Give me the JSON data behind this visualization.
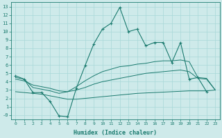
{
  "xlabel": "Humidex (Indice chaleur)",
  "bg_color": "#ceeaea",
  "line_color": "#1a7a6e",
  "grid_color": "#a8d8d8",
  "xlim": [
    -0.5,
    23.5
  ],
  "ylim": [
    -0.5,
    13.5
  ],
  "xticks": [
    0,
    1,
    2,
    3,
    4,
    5,
    6,
    7,
    8,
    9,
    10,
    11,
    12,
    13,
    14,
    15,
    16,
    17,
    18,
    19,
    20,
    21,
    22,
    23
  ],
  "yticks": [
    0,
    1,
    2,
    3,
    4,
    5,
    6,
    7,
    8,
    9,
    10,
    11,
    12,
    13
  ],
  "ytick_labels": [
    "-0",
    "1",
    "2",
    "3",
    "4",
    "5",
    "6",
    "7",
    "8",
    "9",
    "10",
    "11",
    "12",
    "13"
  ],
  "main_x": [
    0,
    1,
    2,
    3,
    4,
    5,
    6,
    7,
    8,
    9,
    10,
    11,
    12,
    13,
    14,
    15,
    16,
    17,
    18,
    19,
    20,
    21,
    22
  ],
  "main_y": [
    4.7,
    4.3,
    2.7,
    2.7,
    1.6,
    -0.1,
    -0.2,
    3.2,
    5.9,
    8.5,
    10.3,
    11.0,
    12.9,
    10.0,
    10.3,
    8.3,
    8.7,
    8.7,
    6.3,
    8.7,
    4.3,
    4.5,
    2.8
  ],
  "line1_x": [
    0,
    1,
    2,
    3,
    4,
    5,
    6,
    7,
    8,
    9,
    10,
    11,
    12,
    13,
    14,
    15,
    16,
    17,
    18,
    19,
    20,
    21,
    22,
    23
  ],
  "line1_y": [
    4.5,
    4.3,
    3.3,
    3.1,
    2.9,
    2.6,
    2.8,
    3.4,
    4.1,
    4.7,
    5.2,
    5.5,
    5.8,
    5.9,
    6.1,
    6.2,
    6.4,
    6.5,
    6.5,
    6.6,
    6.4,
    4.5,
    4.4,
    3.0
  ],
  "line2_x": [
    0,
    1,
    2,
    3,
    4,
    5,
    6,
    7,
    8,
    9,
    10,
    11,
    12,
    13,
    14,
    15,
    16,
    17,
    18,
    19,
    20,
    21,
    22,
    23
  ],
  "line2_y": [
    4.3,
    4.1,
    3.6,
    3.4,
    3.2,
    2.9,
    2.8,
    3.0,
    3.3,
    3.7,
    4.0,
    4.2,
    4.4,
    4.6,
    4.8,
    5.0,
    5.1,
    5.2,
    5.3,
    5.4,
    5.2,
    4.4,
    4.3,
    3.0
  ],
  "line3_x": [
    0,
    1,
    2,
    3,
    4,
    5,
    6,
    7,
    8,
    9,
    10,
    11,
    12,
    13,
    14,
    15,
    16,
    17,
    18,
    19,
    20,
    21,
    22,
    23
  ],
  "line3_y": [
    2.8,
    2.7,
    2.6,
    2.5,
    2.3,
    2.1,
    1.9,
    1.9,
    2.0,
    2.1,
    2.2,
    2.3,
    2.4,
    2.5,
    2.6,
    2.65,
    2.7,
    2.75,
    2.8,
    2.85,
    2.9,
    2.9,
    2.9,
    3.0
  ]
}
